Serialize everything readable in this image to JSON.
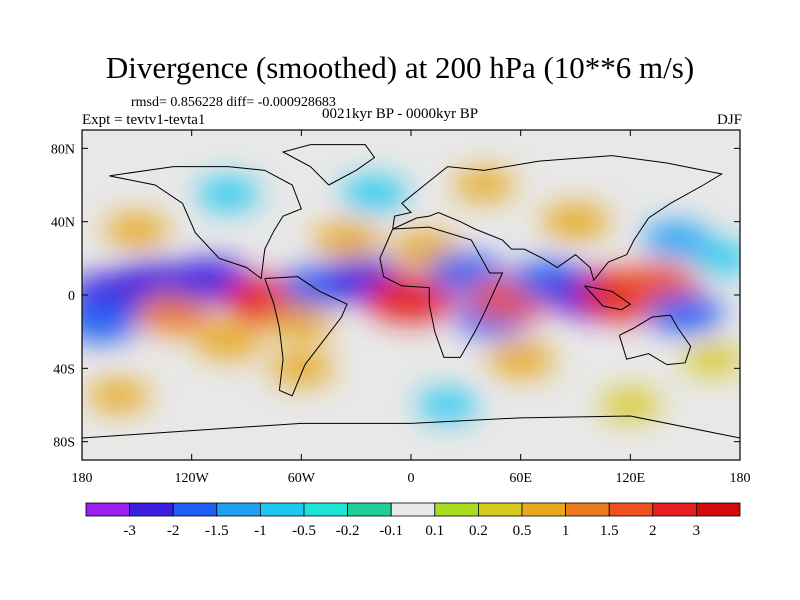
{
  "chart_data": {
    "type": "heatmap",
    "title": "Divergence (smoothed) at 200 hPa (10**6 m/s)",
    "stats_text": "rmsd= 0.856228 diff= -0.000928683",
    "center_label": "0021kyr BP - 0000kyr BP",
    "left_label": "Expt = tevtv1-tevta1",
    "right_label": "DJF",
    "x_ticks": [
      {
        "value": -180,
        "label": "180"
      },
      {
        "value": -120,
        "label": "120W"
      },
      {
        "value": -60,
        "label": "60W"
      },
      {
        "value": 0,
        "label": "0"
      },
      {
        "value": 60,
        "label": "60E"
      },
      {
        "value": 120,
        "label": "120E"
      },
      {
        "value": 180,
        "label": "180"
      }
    ],
    "y_ticks": [
      {
        "value": 80,
        "label": "80N"
      },
      {
        "value": 40,
        "label": "40N"
      },
      {
        "value": 0,
        "label": "0"
      },
      {
        "value": -40,
        "label": "40S"
      },
      {
        "value": -80,
        "label": "80S"
      }
    ],
    "xlim": [
      -180,
      180
    ],
    "ylim": [
      -90,
      90
    ],
    "colorbar": {
      "levels": [
        "-3",
        "-2",
        "-1.5",
        "-1",
        "-0.5",
        "-0.2",
        "-0.1",
        "0.1",
        "0.2",
        "0.5",
        "1",
        "1.5",
        "2",
        "3"
      ],
      "colors": [
        "#9a1ff0",
        "#3b1fe0",
        "#1f5ff5",
        "#1f9ff5",
        "#1fc8f0",
        "#1ee3d8",
        "#1ecf9a",
        "#e8e8e8",
        "#a8dc1e",
        "#d6c81e",
        "#e8a81e",
        "#ee7a1e",
        "#f0501e",
        "#e81e1e",
        "#d20a0a"
      ]
    },
    "field": [
      {
        "lon": -165,
        "lat": 0,
        "value": -2.0
      },
      {
        "lon": -170,
        "lat": -15,
        "value": -1.5
      },
      {
        "lon": -140,
        "lat": 5,
        "value": -2.5
      },
      {
        "lon": -130,
        "lat": -10,
        "value": 1.5
      },
      {
        "lon": -110,
        "lat": 8,
        "value": -2.0
      },
      {
        "lon": -100,
        "lat": -25,
        "value": 1.0
      },
      {
        "lon": -78,
        "lat": -3,
        "value": 2.5
      },
      {
        "lon": -60,
        "lat": -15,
        "value": 0.8
      },
      {
        "lon": -50,
        "lat": 5,
        "value": -1.5
      },
      {
        "lon": -35,
        "lat": 30,
        "value": 1.0
      },
      {
        "lon": -25,
        "lat": 8,
        "value": -2.0
      },
      {
        "lon": 0,
        "lat": -2,
        "value": 2.5
      },
      {
        "lon": 8,
        "lat": 25,
        "value": 1.0
      },
      {
        "lon": 30,
        "lat": 12,
        "value": -1.5
      },
      {
        "lon": 45,
        "lat": -12,
        "value": -1.5
      },
      {
        "lon": 55,
        "lat": -2,
        "value": 2.0
      },
      {
        "lon": 75,
        "lat": 8,
        "value": -1.5
      },
      {
        "lon": 100,
        "lat": 0,
        "value": -2.5
      },
      {
        "lon": 118,
        "lat": 0,
        "value": 3.0
      },
      {
        "lon": 135,
        "lat": 5,
        "value": 2.0
      },
      {
        "lon": 150,
        "lat": -10,
        "value": -1.5
      },
      {
        "lon": 145,
        "lat": 30,
        "value": -1.0
      },
      {
        "lon": 170,
        "lat": 20,
        "value": -0.5
      },
      {
        "lon": 165,
        "lat": -35,
        "value": 0.5
      },
      {
        "lon": -150,
        "lat": 35,
        "value": 0.8
      },
      {
        "lon": -60,
        "lat": -40,
        "value": 0.8
      },
      {
        "lon": 60,
        "lat": -35,
        "value": 1.0
      },
      {
        "lon": 90,
        "lat": 40,
        "value": 1.0
      },
      {
        "lon": -20,
        "lat": 55,
        "value": -0.8
      },
      {
        "lon": 40,
        "lat": 60,
        "value": 0.6
      },
      {
        "lon": -160,
        "lat": -55,
        "value": 0.6
      },
      {
        "lon": 20,
        "lat": -60,
        "value": -0.5
      },
      {
        "lon": 120,
        "lat": -60,
        "value": 0.5
      },
      {
        "lon": -100,
        "lat": 55,
        "value": -0.6
      }
    ]
  }
}
